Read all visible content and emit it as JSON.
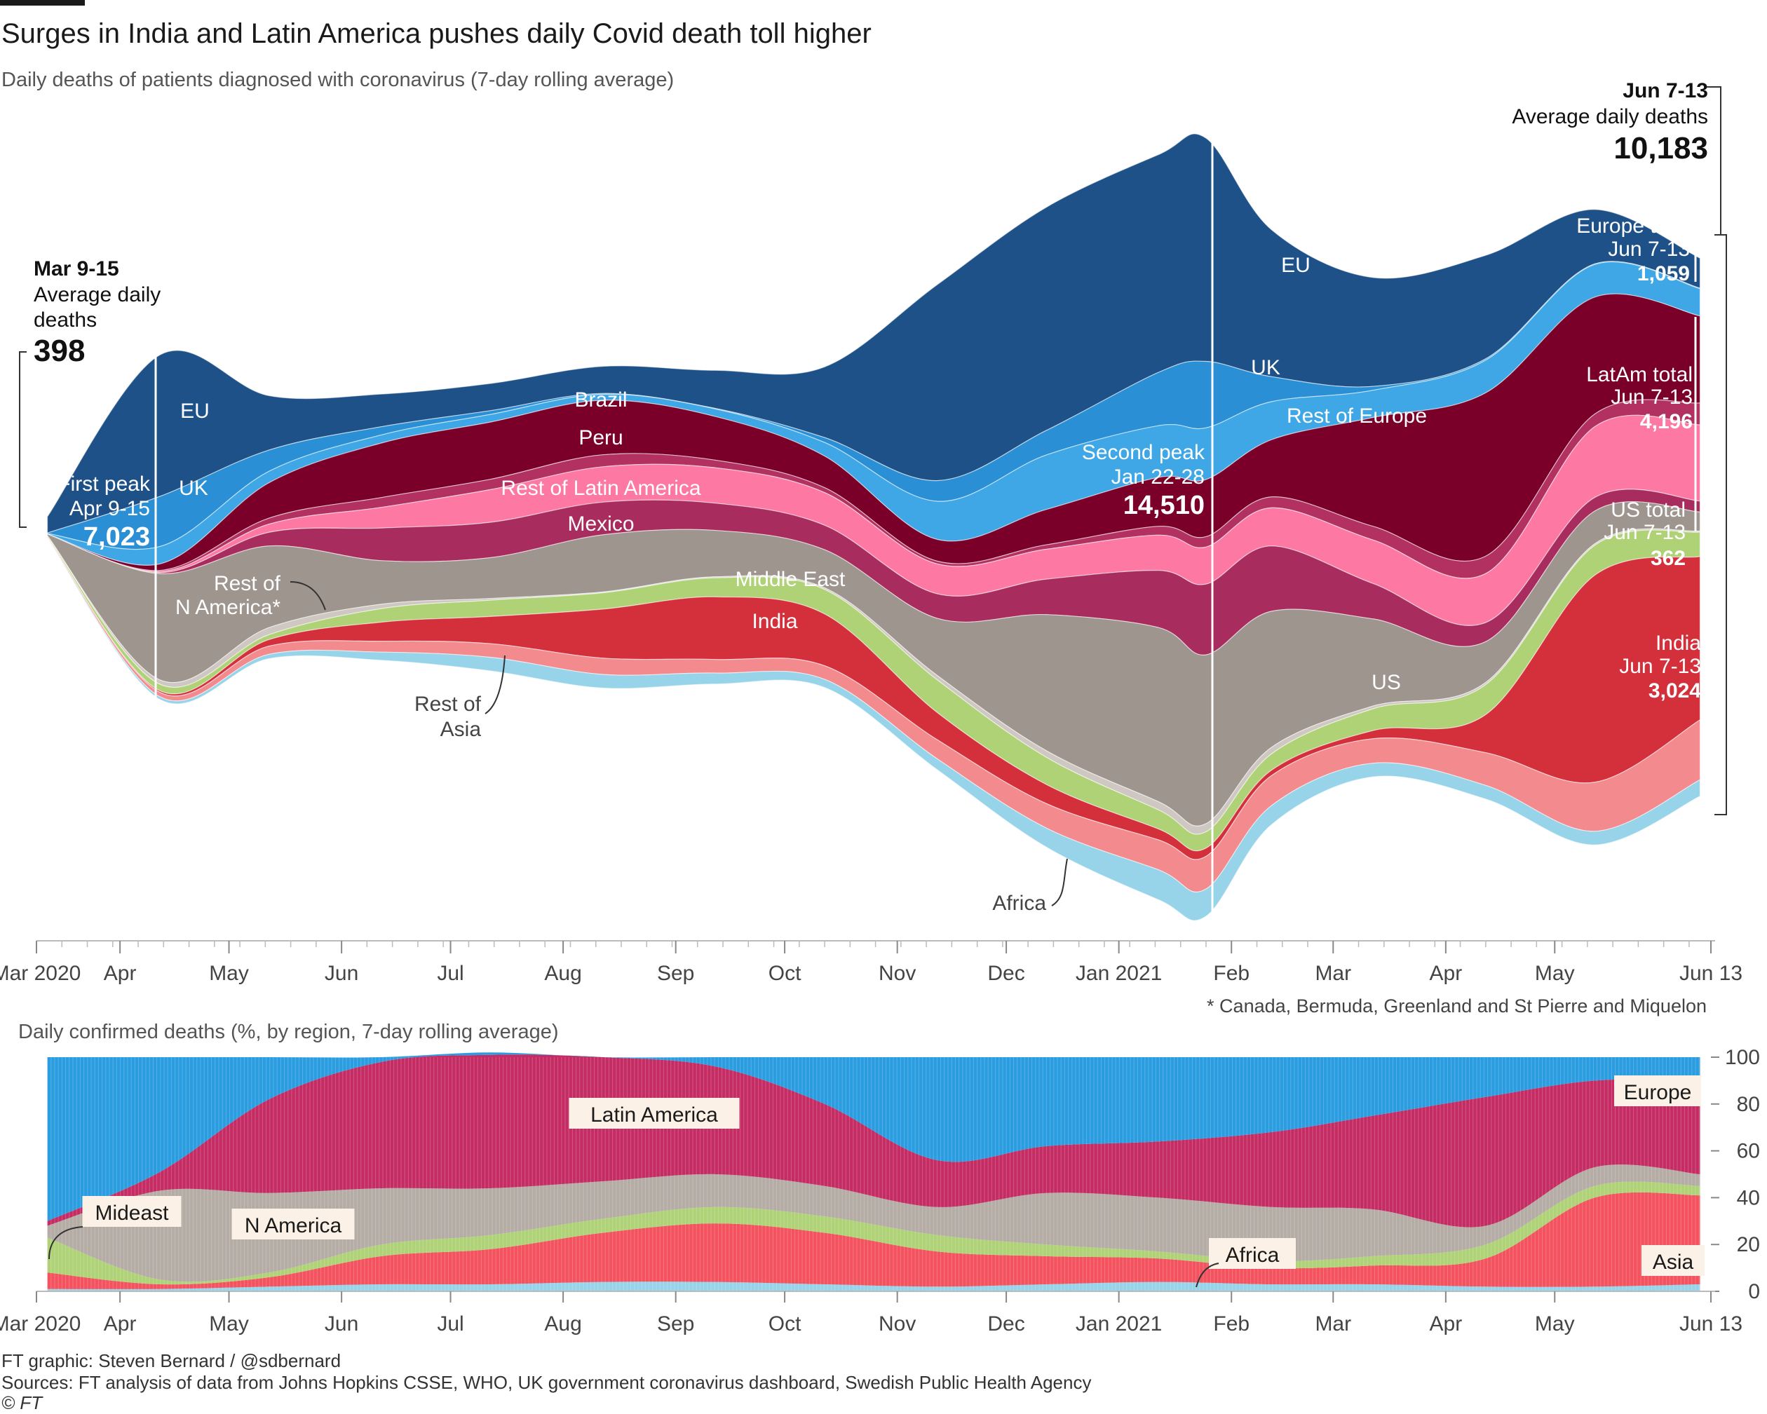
{
  "title": "Surges in India and Latin America pushes daily Covid death toll higher",
  "subtitle": "Daily deaths of patients diagnosed with coronavirus (7-day rolling average)",
  "subtitle2": "Daily confirmed deaths (%, by region, 7-day rolling average)",
  "footnote": "* Canada, Bermuda, Greenland and St Pierre and Miquelon",
  "footer": {
    "credit": "FT graphic: Steven Bernard / @sdbernard",
    "sources": "Sources: FT analysis of data from Johns Hopkins CSSE, WHO, UK government coronavirus dashboard, Swedish Public Health Agency",
    "copyright": "© FT"
  },
  "colors": {
    "EU": "#1f5189",
    "UK": "#2a8fd4",
    "Rest of Europe": "#3fa7e6",
    "Brazil": "#7a0029",
    "Peru": "#b23160",
    "Rest of Latin America": "#fd78a2",
    "Mexico": "#a82d5e",
    "US": "#9d958e",
    "Rest of N America": "#cfc8c2",
    "Middle East": "#afd277",
    "India": "#d3303c",
    "Rest of Asia": "#f38a8e",
    "Africa": "#97d4ea",
    "Europe": "#2a9ce0",
    "Latin America": "#c42c63",
    "N America": "#b4aca5",
    "Mideast": "#afd277",
    "Asia": "#f3525e"
  },
  "x_ticks": [
    "Mar 2020",
    "Apr",
    "May",
    "Jun",
    "Jul",
    "Aug",
    "Sep",
    "Oct",
    "Nov",
    "Dec",
    "Jan 2021",
    "Feb",
    "Mar",
    "Apr",
    "May",
    "Jun 13"
  ],
  "annotations": {
    "start": {
      "period": "Mar 9-15",
      "label": "Average daily deaths",
      "value": "398"
    },
    "end": {
      "period": "Jun 7-13",
      "label": "Average daily deaths",
      "value": "10,183"
    },
    "first_peak": {
      "label": "First peak",
      "period": "Apr 9-15",
      "value": "7,023"
    },
    "second_peak": {
      "label": "Second peak",
      "period": "Jan 22-28",
      "value": "14,510"
    },
    "europe_total": {
      "label": "Europe total",
      "period": "Jun 7-13",
      "value": "1,059"
    },
    "latam_total": {
      "label": "LatAm total",
      "period": "Jun 7-13",
      "value": "4,196"
    },
    "us_total": {
      "label": "US total",
      "period": "Jun 7-13",
      "value": "362"
    },
    "india_total": {
      "label": "India",
      "period": "Jun 7-13",
      "value": "3,024"
    }
  },
  "series_labels": {
    "eu": "EU",
    "uk": "UK",
    "rest_europe": "Rest of Europe",
    "brazil": "Brazil",
    "peru": "Peru",
    "rest_latam": "Rest of Latin America",
    "mexico": "Mexico",
    "us": "US",
    "rest_namerica": "Rest of N America*",
    "mideast": "Middle East",
    "india": "India",
    "rest_asia": "Rest of Asia",
    "africa": "Africa"
  },
  "share_labels": {
    "europe": "Europe",
    "latam": "Latin America",
    "namerica": "N America",
    "mideast": "Mideast",
    "africa": "Africa",
    "asia": "Asia"
  },
  "share_y_ticks": [
    "100",
    "80",
    "60",
    "40",
    "20",
    "0"
  ],
  "chart_data": [
    {
      "type": "area",
      "stacking": "streamgraph",
      "title": "Daily deaths of patients diagnosed with coronavirus (7-day rolling average)",
      "x": [
        "2020-03-12",
        "2020-04-12",
        "2020-05-12",
        "2020-06-12",
        "2020-07-12",
        "2020-08-12",
        "2020-09-12",
        "2020-10-12",
        "2020-11-12",
        "2020-12-12",
        "2021-01-12",
        "2021-01-25",
        "2021-02-12",
        "2021-03-12",
        "2021-04-12",
        "2021-05-12",
        "2021-06-10"
      ],
      "series": [
        {
          "name": "EU",
          "values": [
            300,
            2600,
            1000,
            600,
            500,
            500,
            700,
            1300,
            3600,
            4100,
            4000,
            4100,
            2700,
            2000,
            1900,
            1000,
            550
          ]
        },
        {
          "name": "UK",
          "values": [
            10,
            920,
            390,
            150,
            70,
            15,
            10,
            90,
            380,
            450,
            980,
            1220,
            460,
            70,
            25,
            10,
            10
          ]
        },
        {
          "name": "Rest of Europe",
          "values": [
            10,
            320,
            210,
            150,
            140,
            110,
            140,
            250,
            700,
            1000,
            950,
            950,
            700,
            500,
            600,
            600,
            500
          ]
        },
        {
          "name": "Brazil",
          "values": [
            0,
            120,
            650,
            1000,
            1050,
            1000,
            800,
            580,
            400,
            650,
            900,
            1050,
            1050,
            2000,
            3000,
            2150,
            1600
          ]
        },
        {
          "name": "Peru",
          "values": [
            0,
            20,
            110,
            180,
            190,
            220,
            140,
            90,
            50,
            80,
            160,
            190,
            200,
            250,
            320,
            230,
            400
          ]
        },
        {
          "name": "Rest of Latin America",
          "values": [
            0,
            20,
            150,
            380,
            600,
            650,
            650,
            600,
            550,
            550,
            650,
            680,
            700,
            800,
            900,
            1300,
            1400
          ]
        },
        {
          "name": "Mexico",
          "values": [
            0,
            20,
            250,
            600,
            650,
            600,
            500,
            450,
            450,
            650,
            1050,
            1300,
            1200,
            650,
            350,
            250,
            200
          ]
        },
        {
          "name": "US",
          "values": [
            30,
            1950,
            1500,
            800,
            750,
            1050,
            850,
            700,
            1050,
            2500,
            3200,
            3100,
            2500,
            1600,
            750,
            600,
            350
          ]
        },
        {
          "name": "Rest of N America*",
          "values": [
            0,
            80,
            130,
            80,
            30,
            15,
            20,
            30,
            80,
            120,
            150,
            150,
            120,
            50,
            40,
            30,
            20
          ]
        },
        {
          "name": "Middle East",
          "values": [
            20,
            120,
            90,
            250,
            300,
            300,
            350,
            450,
            600,
            500,
            350,
            300,
            300,
            400,
            550,
            550,
            450
          ]
        },
        {
          "name": "India",
          "values": [
            0,
            30,
            120,
            350,
            500,
            900,
            1150,
            950,
            500,
            350,
            200,
            150,
            100,
            150,
            700,
            3800,
            3000
          ]
        },
        {
          "name": "Rest of Asia",
          "values": [
            15,
            80,
            150,
            200,
            250,
            300,
            250,
            250,
            350,
            450,
            550,
            600,
            550,
            450,
            600,
            900,
            1100
          ]
        },
        {
          "name": "Africa",
          "values": [
            0,
            50,
            80,
            150,
            250,
            250,
            200,
            150,
            200,
            350,
            550,
            500,
            350,
            250,
            250,
            250,
            300
          ]
        }
      ]
    },
    {
      "type": "area",
      "stacking": "percent",
      "title": "Daily confirmed deaths (%, by region, 7-day rolling average)",
      "x": [
        "2020-03-12",
        "2020-04-12",
        "2020-05-12",
        "2020-06-12",
        "2020-07-12",
        "2020-08-12",
        "2020-09-12",
        "2020-10-12",
        "2020-11-12",
        "2020-12-12",
        "2021-01-12",
        "2021-02-12",
        "2021-03-12",
        "2021-04-12",
        "2021-05-12",
        "2021-06-10"
      ],
      "ylim": [
        0,
        100
      ],
      "series": [
        {
          "name": "Africa",
          "values": [
            1,
            1,
            2,
            3,
            3,
            4,
            4,
            3,
            2,
            3,
            4,
            3,
            3,
            2,
            2,
            3
          ]
        },
        {
          "name": "Asia",
          "values": [
            7,
            2,
            4,
            12,
            15,
            21,
            25,
            22,
            15,
            12,
            10,
            7,
            8,
            12,
            38,
            38
          ]
        },
        {
          "name": "Mideast",
          "values": [
            15,
            2,
            2,
            5,
            6,
            6,
            7,
            7,
            7,
            5,
            3,
            3,
            4,
            6,
            5,
            4
          ]
        },
        {
          "name": "N America",
          "values": [
            5,
            38,
            34,
            24,
            20,
            16,
            14,
            13,
            12,
            22,
            23,
            23,
            20,
            8,
            8,
            5
          ]
        },
        {
          "name": "Latin America",
          "values": [
            2,
            8,
            40,
            54,
            57,
            53,
            46,
            35,
            20,
            20,
            24,
            32,
            40,
            55,
            37,
            40
          ]
        },
        {
          "name": "Europe",
          "values": [
            70,
            49,
            18,
            2,
            1,
            0,
            4,
            20,
            44,
            38,
            36,
            32,
            25,
            17,
            10,
            10
          ]
        }
      ]
    }
  ]
}
